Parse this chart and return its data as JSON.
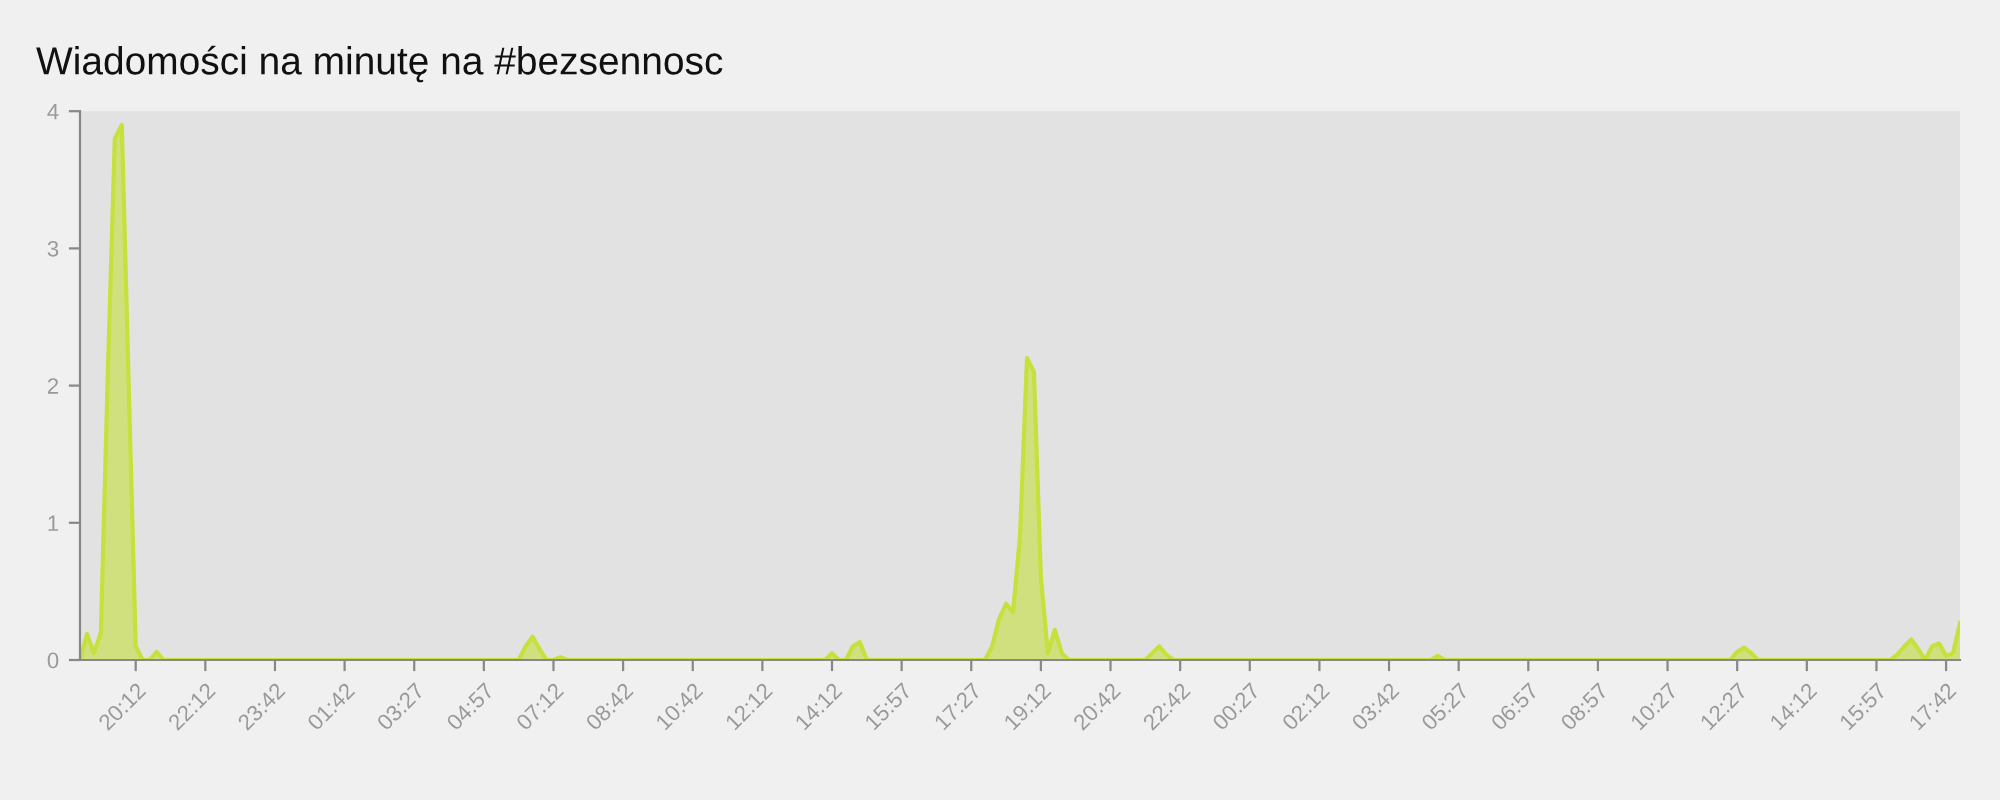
{
  "chart_data": {
    "type": "area",
    "title": "Wiadomości na minutę na #bezsennosc",
    "categories": [
      null,
      null,
      null,
      null,
      null,
      null,
      null,
      null,
      "20:12",
      null,
      null,
      null,
      null,
      null,
      null,
      null,
      null,
      null,
      "22:12",
      null,
      null,
      null,
      null,
      null,
      null,
      null,
      null,
      null,
      "23:42",
      null,
      null,
      null,
      null,
      null,
      null,
      null,
      null,
      null,
      "01:42",
      null,
      null,
      null,
      null,
      null,
      null,
      null,
      null,
      null,
      "03:27",
      null,
      null,
      null,
      null,
      null,
      null,
      null,
      null,
      null,
      "04:57",
      null,
      null,
      null,
      null,
      null,
      null,
      null,
      null,
      null,
      "07:12",
      null,
      null,
      null,
      null,
      null,
      null,
      null,
      null,
      null,
      "08:42",
      null,
      null,
      null,
      null,
      null,
      null,
      null,
      null,
      null,
      "10:42",
      null,
      null,
      null,
      null,
      null,
      null,
      null,
      null,
      null,
      "12:12",
      null,
      null,
      null,
      null,
      null,
      null,
      null,
      null,
      null,
      "14:12",
      null,
      null,
      null,
      null,
      null,
      null,
      null,
      null,
      null,
      "15:57",
      null,
      null,
      null,
      null,
      null,
      null,
      null,
      null,
      null,
      "17:27",
      null,
      null,
      null,
      null,
      null,
      null,
      null,
      null,
      null,
      "19:12",
      null,
      null,
      null,
      null,
      null,
      null,
      null,
      null,
      null,
      "20:42",
      null,
      null,
      null,
      null,
      null,
      null,
      null,
      null,
      null,
      "22:42",
      null,
      null,
      null,
      null,
      null,
      null,
      null,
      null,
      null,
      "00:27",
      null,
      null,
      null,
      null,
      null,
      null,
      null,
      null,
      null,
      "02:12",
      null,
      null,
      null,
      null,
      null,
      null,
      null,
      null,
      null,
      "03:42",
      null,
      null,
      null,
      null,
      null,
      null,
      null,
      null,
      null,
      "05:27",
      null,
      null,
      null,
      null,
      null,
      null,
      null,
      null,
      null,
      "06:57",
      null,
      null,
      null,
      null,
      null,
      null,
      null,
      null,
      null,
      "08:57",
      null,
      null,
      null,
      null,
      null,
      null,
      null,
      null,
      null,
      "10:27",
      null,
      null,
      null,
      null,
      null,
      null,
      null,
      null,
      null,
      "12:27",
      null,
      null,
      null,
      null,
      null,
      null,
      null,
      null,
      null,
      "14:12",
      null,
      null,
      null,
      null,
      null,
      null,
      null,
      null,
      null,
      "15:57",
      null,
      null,
      null,
      null,
      null,
      null,
      null,
      null,
      null,
      "17:42",
      null,
      null
    ],
    "series": [
      {
        "color": "#c6e03c",
        "values": [
          0,
          0.19,
          0.05,
          0.2,
          2.1,
          3.8,
          3.9,
          2.0,
          0.1,
          0,
          0,
          0.06,
          0,
          0,
          0,
          0,
          0,
          0,
          0,
          0,
          0,
          0,
          0,
          0,
          0,
          0,
          0,
          0,
          0,
          0,
          0,
          0,
          0,
          0,
          0,
          0,
          0,
          0,
          0,
          0,
          0,
          0,
          0,
          0,
          0,
          0,
          0,
          0,
          0,
          0,
          0,
          0,
          0,
          0,
          0,
          0,
          0,
          0,
          0,
          0,
          0,
          0,
          0,
          0,
          0.1,
          0.17,
          0.08,
          0,
          0,
          0.02,
          0,
          0,
          0,
          0,
          0,
          0,
          0,
          0,
          0,
          0,
          0,
          0,
          0,
          0,
          0,
          0,
          0,
          0,
          0,
          0,
          0,
          0,
          0,
          0,
          0,
          0,
          0,
          0,
          0,
          0,
          0,
          0,
          0,
          0,
          0,
          0,
          0,
          0,
          0.05,
          0,
          0,
          0.1,
          0.13,
          0,
          0,
          0,
          0,
          0,
          0,
          0,
          0,
          0,
          0,
          0,
          0,
          0,
          0,
          0,
          0,
          0,
          0,
          0.1,
          0.3,
          0.41,
          0.35,
          0.9,
          2.2,
          2.1,
          0.6,
          0.05,
          0.22,
          0.05,
          0,
          0,
          0,
          0,
          0,
          0,
          0,
          0,
          0,
          0,
          0,
          0,
          0.05,
          0.1,
          0.04,
          0,
          0,
          0,
          0,
          0,
          0,
          0,
          0,
          0,
          0,
          0,
          0,
          0,
          0,
          0,
          0,
          0,
          0,
          0,
          0,
          0,
          0,
          0,
          0,
          0,
          0,
          0,
          0,
          0,
          0,
          0,
          0,
          0,
          0,
          0,
          0,
          0,
          0,
          0.03,
          0,
          0,
          0,
          0,
          0,
          0,
          0,
          0,
          0,
          0,
          0,
          0,
          0,
          0,
          0,
          0,
          0,
          0,
          0,
          0,
          0,
          0,
          0,
          0,
          0,
          0,
          0,
          0,
          0,
          0,
          0,
          0,
          0,
          0,
          0,
          0,
          0,
          0,
          0,
          0,
          0,
          0,
          0.06,
          0.09,
          0.05,
          0,
          0,
          0,
          0,
          0,
          0,
          0,
          0,
          0,
          0,
          0,
          0,
          0,
          0,
          0,
          0,
          0,
          0,
          0,
          0,
          0.04,
          0.1,
          0.15,
          0.08,
          0,
          0.1,
          0.12,
          0.03,
          0.05,
          0.27
        ]
      }
    ],
    "ylim": [
      0,
      4
    ],
    "yticks": [
      0,
      1,
      2,
      3,
      4
    ],
    "grid": false,
    "legend": false
  }
}
